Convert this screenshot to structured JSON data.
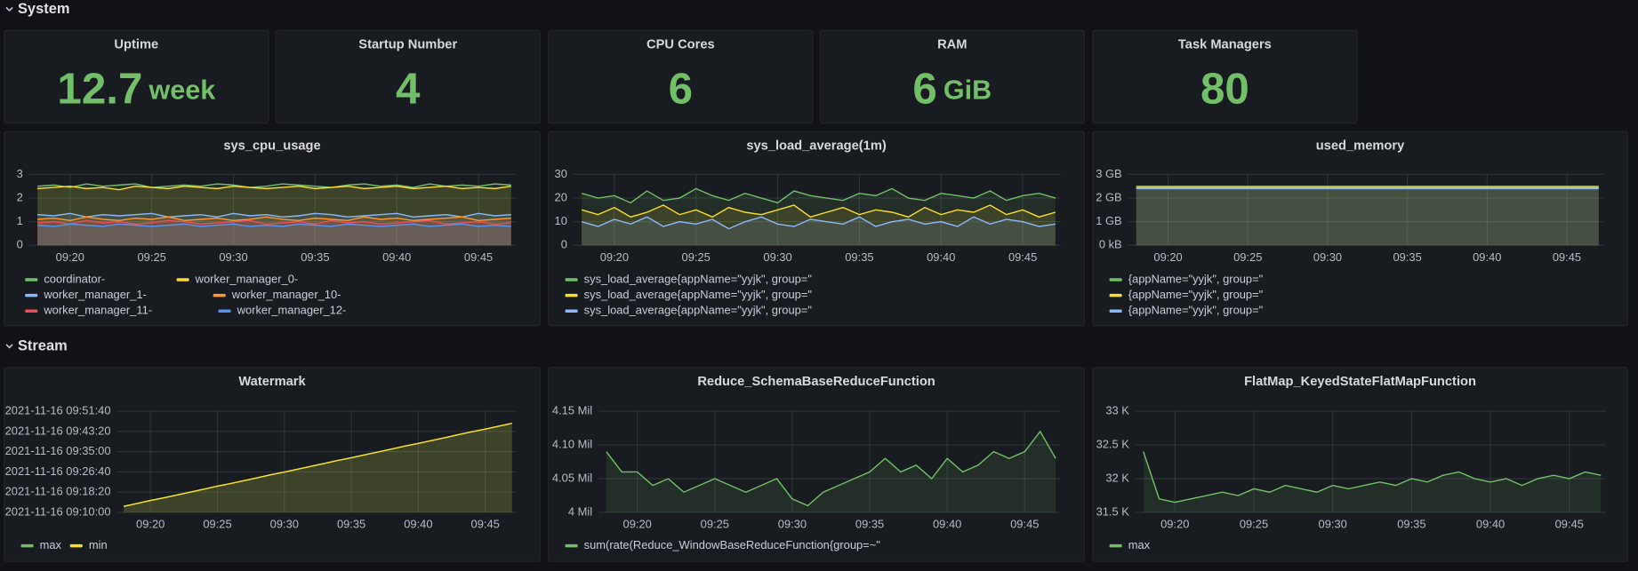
{
  "rows": [
    {
      "title": "System"
    },
    {
      "title": "Stream"
    }
  ],
  "stats": [
    {
      "title": "Uptime",
      "value": "12.7",
      "unit": "week"
    },
    {
      "title": "Startup Number",
      "value": "4"
    },
    {
      "title": "CPU Cores",
      "value": "6"
    },
    {
      "title": "RAM",
      "value": "6",
      "unit": "GiB"
    },
    {
      "title": "Task Managers",
      "value": "80"
    }
  ],
  "chart_data": [
    {
      "type": "line",
      "title": "sys_cpu_usage",
      "fill": true,
      "grid": true,
      "x": [
        18,
        19,
        20,
        21,
        22,
        23,
        24,
        25,
        26,
        27,
        28,
        29,
        30,
        31,
        32,
        33,
        34,
        35,
        36,
        37,
        38,
        39,
        40,
        41,
        42,
        43,
        44,
        45,
        46,
        47
      ],
      "xlim": [
        17.5,
        47.3
      ],
      "xticks": [
        {
          "value": 20,
          "label": "09:20"
        },
        {
          "value": 25,
          "label": "09:25"
        },
        {
          "value": 30,
          "label": "09:30"
        },
        {
          "value": 35,
          "label": "09:35"
        },
        {
          "value": 40,
          "label": "09:40"
        },
        {
          "value": 45,
          "label": "09:45"
        }
      ],
      "ylim": [
        0,
        3
      ],
      "yticks": [
        0,
        1,
        2,
        3
      ],
      "series": [
        {
          "name": "coordinator-",
          "color": "#73bf69",
          "values": [
            2.5,
            2.55,
            2.45,
            2.6,
            2.5,
            2.55,
            2.6,
            2.45,
            2.5,
            2.55,
            2.5,
            2.6,
            2.55,
            2.45,
            2.5,
            2.6,
            2.55,
            2.5,
            2.45,
            2.55,
            2.6,
            2.5,
            2.55,
            2.45,
            2.6,
            2.5,
            2.55,
            2.5,
            2.6,
            2.55
          ]
        },
        {
          "name": "worker_manager_0-",
          "color": "#fade2a",
          "values": [
            2.4,
            2.45,
            2.5,
            2.4,
            2.45,
            2.35,
            2.5,
            2.45,
            2.4,
            2.5,
            2.45,
            2.4,
            2.5,
            2.45,
            2.4,
            2.45,
            2.5,
            2.4,
            2.45,
            2.5,
            2.4,
            2.45,
            2.5,
            2.4,
            2.45,
            2.5,
            2.4,
            2.45,
            2.4,
            2.5
          ]
        },
        {
          "name": "worker_manager_1-",
          "color": "#8ab8ff",
          "values": [
            1.3,
            1.25,
            1.35,
            1.2,
            1.3,
            1.25,
            1.3,
            1.35,
            1.2,
            1.25,
            1.3,
            1.2,
            1.35,
            1.25,
            1.3,
            1.2,
            1.25,
            1.35,
            1.3,
            1.2,
            1.25,
            1.3,
            1.35,
            1.2,
            1.25,
            1.3,
            1.2,
            1.35,
            1.25,
            1.3
          ]
        },
        {
          "name": "worker_manager_10-",
          "color": "#ff9830",
          "values": [
            1.1,
            1.15,
            1.05,
            1.2,
            1.1,
            1.05,
            1.15,
            1.1,
            1.2,
            1.05,
            1.1,
            1.15,
            1.05,
            1.1,
            1.2,
            1.1,
            1.05,
            1.15,
            1.1,
            1.05,
            1.2,
            1.1,
            1.15,
            1.05,
            1.1,
            1.15,
            1.2,
            1.05,
            1.1,
            1.15
          ]
        },
        {
          "name": "worker_manager_11-",
          "color": "#f2495c",
          "values": [
            0.95,
            1.0,
            0.9,
            1.05,
            0.95,
            1.0,
            0.9,
            0.95,
            1.05,
            1.0,
            0.9,
            0.95,
            1.0,
            1.05,
            0.9,
            0.95,
            1.0,
            0.9,
            1.05,
            0.95,
            1.0,
            0.9,
            0.95,
            1.0,
            1.05,
            0.9,
            0.95,
            1.0,
            0.9,
            0.95
          ]
        },
        {
          "name": "worker_manager_12-",
          "color": "#5794f2",
          "values": [
            0.85,
            0.8,
            0.9,
            0.85,
            0.8,
            0.9,
            0.85,
            0.8,
            0.85,
            0.9,
            0.8,
            0.85,
            0.9,
            0.8,
            0.85,
            0.8,
            0.9,
            0.85,
            0.8,
            0.9,
            0.85,
            0.8,
            0.85,
            0.9,
            0.8,
            0.85,
            0.9,
            0.8,
            0.85,
            0.8
          ]
        }
      ]
    },
    {
      "type": "line",
      "title": "sys_load_average(1m)",
      "fill": true,
      "grid": true,
      "x": [
        18,
        19,
        20,
        21,
        22,
        23,
        24,
        25,
        26,
        27,
        28,
        29,
        30,
        31,
        32,
        33,
        34,
        35,
        36,
        37,
        38,
        39,
        40,
        41,
        42,
        43,
        44,
        45,
        46,
        47
      ],
      "xlim": [
        17.5,
        47.3
      ],
      "xticks": [
        {
          "value": 20,
          "label": "09:20"
        },
        {
          "value": 25,
          "label": "09:25"
        },
        {
          "value": 30,
          "label": "09:30"
        },
        {
          "value": 35,
          "label": "09:35"
        },
        {
          "value": 40,
          "label": "09:40"
        },
        {
          "value": 45,
          "label": "09:45"
        }
      ],
      "ylim": [
        0,
        30
      ],
      "yticks": [
        0,
        10,
        20,
        30
      ],
      "series": [
        {
          "name": "sys_load_average{appName=\"yyjk\", group=\"",
          "color": "#73bf69",
          "values": [
            22,
            20,
            21,
            18,
            23,
            19,
            20,
            24,
            21,
            19,
            22,
            20,
            18,
            23,
            21,
            20,
            19,
            22,
            21,
            24,
            20,
            19,
            22,
            21,
            20,
            23,
            19,
            21,
            22,
            20
          ]
        },
        {
          "name": "sys_load_average{appName=\"yyjk\", group=\"",
          "color": "#fade2a",
          "values": [
            15,
            13,
            16,
            12,
            14,
            17,
            13,
            15,
            12,
            16,
            14,
            13,
            15,
            17,
            12,
            14,
            16,
            13,
            15,
            14,
            12,
            16,
            13,
            15,
            14,
            17,
            13,
            15,
            12,
            14
          ]
        },
        {
          "name": "sys_load_average{appName=\"yyjk\", group=\"",
          "color": "#8ab8ff",
          "values": [
            10,
            8,
            11,
            9,
            12,
            8,
            10,
            9,
            11,
            7,
            10,
            12,
            9,
            8,
            11,
            10,
            9,
            12,
            8,
            10,
            11,
            9,
            10,
            8,
            12,
            9,
            11,
            10,
            8,
            9
          ]
        }
      ]
    },
    {
      "type": "line",
      "title": "used_memory",
      "fill": true,
      "grid": true,
      "x": [
        18,
        19,
        20,
        21,
        22,
        23,
        24,
        25,
        26,
        27,
        28,
        29,
        30,
        31,
        32,
        33,
        34,
        35,
        36,
        37,
        38,
        39,
        40,
        41,
        42,
        43,
        44,
        45,
        46,
        47
      ],
      "xlim": [
        17.5,
        47.3
      ],
      "xticks": [
        {
          "value": 20,
          "label": "09:20"
        },
        {
          "value": 25,
          "label": "09:25"
        },
        {
          "value": 30,
          "label": "09:30"
        },
        {
          "value": 35,
          "label": "09:35"
        },
        {
          "value": 40,
          "label": "09:40"
        },
        {
          "value": 45,
          "label": "09:45"
        }
      ],
      "ylim": [
        0,
        3
      ],
      "yticks": [
        {
          "value": 0,
          "label": "0 kB"
        },
        {
          "value": 1,
          "label": "1 GB"
        },
        {
          "value": 2,
          "label": "2 GB"
        },
        {
          "value": 3,
          "label": "3 GB"
        }
      ],
      "series": [
        {
          "name": "{appName=\"yyjk\", group=\"",
          "color": "#73bf69",
          "values": [
            2.5,
            2.5,
            2.5,
            2.5,
            2.5,
            2.5,
            2.5,
            2.5,
            2.5,
            2.5,
            2.5,
            2.5,
            2.5,
            2.5,
            2.5,
            2.5,
            2.5,
            2.5,
            2.5,
            2.5,
            2.5,
            2.5,
            2.5,
            2.5,
            2.5,
            2.5,
            2.5,
            2.5,
            2.5,
            2.5
          ]
        },
        {
          "name": "{appName=\"yyjk\", group=\"",
          "color": "#fade2a",
          "values": [
            2.45,
            2.45,
            2.45,
            2.45,
            2.45,
            2.45,
            2.45,
            2.45,
            2.45,
            2.45,
            2.45,
            2.45,
            2.45,
            2.45,
            2.45,
            2.45,
            2.45,
            2.45,
            2.45,
            2.45,
            2.45,
            2.45,
            2.45,
            2.45,
            2.45,
            2.45,
            2.45,
            2.45,
            2.45,
            2.45
          ]
        },
        {
          "name": "{appName=\"yyjk\", group=\"",
          "color": "#8ab8ff",
          "values": [
            2.4,
            2.4,
            2.4,
            2.4,
            2.4,
            2.4,
            2.4,
            2.4,
            2.4,
            2.4,
            2.4,
            2.4,
            2.4,
            2.4,
            2.4,
            2.4,
            2.4,
            2.4,
            2.4,
            2.4,
            2.4,
            2.4,
            2.4,
            2.4,
            2.4,
            2.4,
            2.4,
            2.4,
            2.4,
            2.4
          ]
        }
      ]
    },
    {
      "type": "line",
      "title": "Watermark",
      "fill": true,
      "grid": true,
      "x": [
        18,
        19,
        20,
        21,
        22,
        23,
        24,
        25,
        26,
        27,
        28,
        29,
        30,
        31,
        32,
        33,
        34,
        35,
        36,
        37,
        38,
        39,
        40,
        41,
        42,
        43,
        44,
        45,
        46,
        47
      ],
      "xlim": [
        17.5,
        47.3
      ],
      "xticks": [
        {
          "value": 20,
          "label": "09:20"
        },
        {
          "value": 25,
          "label": "09:25"
        },
        {
          "value": 30,
          "label": "09:30"
        },
        {
          "value": 35,
          "label": "09:35"
        },
        {
          "value": 40,
          "label": "09:40"
        },
        {
          "value": 45,
          "label": "09:45"
        }
      ],
      "ylim": [
        10,
        51.667
      ],
      "yticks": [
        {
          "value": 10,
          "label": "2021-11-16 09:10:00"
        },
        {
          "value": 18.333,
          "label": "2021-11-16 09:18:20"
        },
        {
          "value": 26.667,
          "label": "2021-11-16 09:26:40"
        },
        {
          "value": 35,
          "label": "2021-11-16 09:35:00"
        },
        {
          "value": 43.333,
          "label": "2021-11-16 09:43:20"
        },
        {
          "value": 51.667,
          "label": "2021-11-16 09:51:40"
        }
      ],
      "series": [
        {
          "name": "max",
          "color": "#73bf69",
          "values": [
            12.5,
            13.7,
            14.9,
            16.0,
            17.2,
            18.4,
            19.6,
            20.8,
            21.9,
            23.1,
            24.3,
            25.5,
            26.6,
            27.8,
            29.0,
            30.2,
            31.4,
            32.5,
            33.7,
            34.9,
            36.1,
            37.3,
            38.4,
            39.6,
            40.8,
            42.0,
            43.2,
            44.3,
            45.5,
            46.7
          ]
        },
        {
          "name": "min",
          "color": "#fade2a",
          "values": [
            12.5,
            13.7,
            14.9,
            16.0,
            17.2,
            18.4,
            19.6,
            20.8,
            21.9,
            23.1,
            24.3,
            25.5,
            26.6,
            27.8,
            29.0,
            30.2,
            31.4,
            32.5,
            33.7,
            34.9,
            36.1,
            37.3,
            38.4,
            39.6,
            40.8,
            42.0,
            43.2,
            44.3,
            45.5,
            46.7
          ]
        }
      ]
    },
    {
      "type": "line",
      "title": "Reduce_SchemaBaseReduceFunction",
      "fill": true,
      "grid": true,
      "x": [
        18,
        19,
        20,
        21,
        22,
        23,
        24,
        25,
        26,
        27,
        28,
        29,
        30,
        31,
        32,
        33,
        34,
        35,
        36,
        37,
        38,
        39,
        40,
        41,
        42,
        43,
        44,
        45,
        46,
        47
      ],
      "xlim": [
        17.5,
        47.3
      ],
      "xticks": [
        {
          "value": 20,
          "label": "09:20"
        },
        {
          "value": 25,
          "label": "09:25"
        },
        {
          "value": 30,
          "label": "09:30"
        },
        {
          "value": 35,
          "label": "09:35"
        },
        {
          "value": 40,
          "label": "09:40"
        },
        {
          "value": 45,
          "label": "09:45"
        }
      ],
      "ylim": [
        4,
        4.15
      ],
      "yticks": [
        {
          "value": 4,
          "label": "4 Mil"
        },
        {
          "value": 4.05,
          "label": "4.05 Mil"
        },
        {
          "value": 4.1,
          "label": "4.10 Mil"
        },
        {
          "value": 4.15,
          "label": "4.15 Mil"
        }
      ],
      "series": [
        {
          "name": "sum(rate(Reduce_WindowBaseReduceFunction{group=~\"",
          "color": "#73bf69",
          "values": [
            4.09,
            4.06,
            4.06,
            4.04,
            4.05,
            4.03,
            4.04,
            4.05,
            4.04,
            4.03,
            4.04,
            4.05,
            4.02,
            4.01,
            4.03,
            4.04,
            4.05,
            4.06,
            4.08,
            4.06,
            4.07,
            4.05,
            4.08,
            4.06,
            4.07,
            4.09,
            4.08,
            4.09,
            4.12,
            4.08
          ]
        }
      ]
    },
    {
      "type": "line",
      "title": "FlatMap_KeyedStateFlatMapFunction",
      "fill": true,
      "grid": true,
      "x": [
        18,
        19,
        20,
        21,
        22,
        23,
        24,
        25,
        26,
        27,
        28,
        29,
        30,
        31,
        32,
        33,
        34,
        35,
        36,
        37,
        38,
        39,
        40,
        41,
        42,
        43,
        44,
        45,
        46,
        47
      ],
      "xlim": [
        17.5,
        47.3
      ],
      "xticks": [
        {
          "value": 20,
          "label": "09:20"
        },
        {
          "value": 25,
          "label": "09:25"
        },
        {
          "value": 30,
          "label": "09:30"
        },
        {
          "value": 35,
          "label": "09:35"
        },
        {
          "value": 40,
          "label": "09:40"
        },
        {
          "value": 45,
          "label": "09:45"
        }
      ],
      "ylim": [
        31.5,
        33
      ],
      "yticks": [
        {
          "value": 31.5,
          "label": "31.5 K"
        },
        {
          "value": 32,
          "label": "32 K"
        },
        {
          "value": 32.5,
          "label": "32.5 K"
        },
        {
          "value": 33,
          "label": "33 K"
        }
      ],
      "series": [
        {
          "name": "max",
          "color": "#73bf69",
          "values": [
            32.4,
            31.7,
            31.65,
            31.7,
            31.75,
            31.8,
            31.75,
            31.85,
            31.8,
            31.9,
            31.85,
            31.8,
            31.9,
            31.85,
            31.9,
            31.95,
            31.9,
            32.0,
            31.95,
            32.05,
            32.1,
            32.0,
            31.95,
            32.0,
            31.9,
            32.0,
            32.05,
            32.0,
            32.1,
            32.05
          ]
        }
      ]
    }
  ]
}
